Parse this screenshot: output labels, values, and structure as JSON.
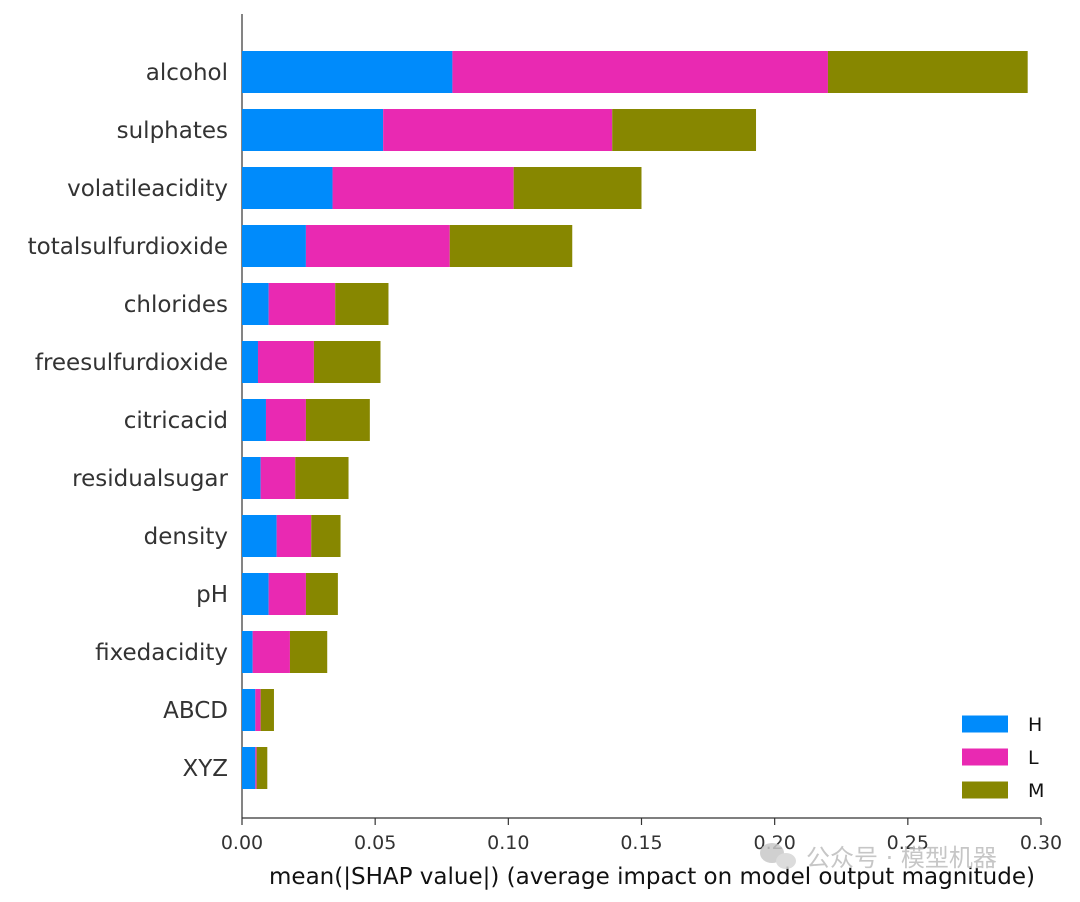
{
  "chart_data": {
    "type": "bar",
    "orientation": "horizontal",
    "stacked": true,
    "categories": [
      "alcohol",
      "sulphates",
      "volatileacidity",
      "totalsulfurdioxide",
      "chlorides",
      "freesulfurdioxide",
      "citricacid",
      "residualsugar",
      "density",
      "pH",
      "fixedacidity",
      "ABCD",
      "XYZ"
    ],
    "series": [
      {
        "name": "H",
        "color": "#008bfb",
        "values": [
          0.079,
          0.053,
          0.034,
          0.024,
          0.01,
          0.006,
          0.009,
          0.007,
          0.013,
          0.01,
          0.004,
          0.005,
          0.005
        ]
      },
      {
        "name": "L",
        "color": "#e929b2",
        "values": [
          0.141,
          0.086,
          0.068,
          0.054,
          0.025,
          0.021,
          0.015,
          0.013,
          0.013,
          0.014,
          0.014,
          0.002,
          0.0005
        ]
      },
      {
        "name": "M",
        "color": "#878700",
        "values": [
          0.075,
          0.054,
          0.048,
          0.046,
          0.02,
          0.025,
          0.024,
          0.02,
          0.011,
          0.012,
          0.014,
          0.005,
          0.004
        ]
      }
    ],
    "xlabel": "mean(|SHAP value|) (average impact on model output magnitude)",
    "ylabel": "",
    "xlim": [
      0,
      0.3
    ],
    "xticks": [
      0.0,
      0.05,
      0.1,
      0.15,
      0.2,
      0.25,
      0.3
    ],
    "xtick_labels": [
      "0.00",
      "0.05",
      "0.10",
      "0.15",
      "0.20",
      "0.25",
      "0.30"
    ],
    "grid": false,
    "legend_position": "bottom-right"
  },
  "watermark": {
    "text": "公众号 · 模型机器"
  }
}
